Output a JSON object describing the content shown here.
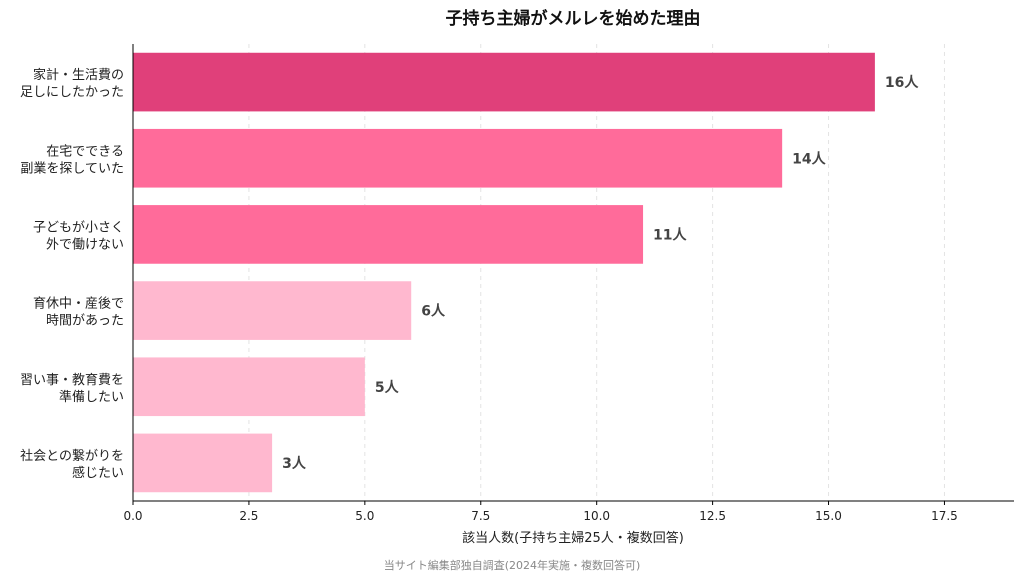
{
  "chart_data": {
    "type": "bar",
    "orientation": "horizontal",
    "title": "子持ち主婦がメルレを始めた理由",
    "xlabel": "該当人数(子持ち主婦25人・複数回答)",
    "ylabel": "",
    "categories": [
      [
        "家計・生活費の",
        "足しにしたかった"
      ],
      [
        "在宅でできる",
        "副業を探していた"
      ],
      [
        "子どもが小さく",
        "外で働けない"
      ],
      [
        "育休中・産後で",
        "時間があった"
      ],
      [
        "習い事・教育費を",
        "準備したい"
      ],
      [
        "社会との繋がりを",
        "感じたい"
      ]
    ],
    "values": [
      16,
      14,
      11,
      6,
      5,
      3
    ],
    "value_labels": [
      "16人",
      "14人",
      "11人",
      "6人",
      "5人",
      "3人"
    ],
    "bar_colors": [
      "#e0407a",
      "#ff6b9a",
      "#ff6b9a",
      "#ffb8cf",
      "#ffb8cf",
      "#ffb8cf"
    ],
    "xlim": [
      0,
      19
    ],
    "xticks": [
      0.0,
      2.5,
      5.0,
      7.5,
      10.0,
      12.5,
      15.0,
      17.5
    ],
    "xtick_labels": [
      "0.0",
      "2.5",
      "5.0",
      "7.5",
      "10.0",
      "12.5",
      "15.0",
      "17.5"
    ],
    "grid": "vertical-dashed",
    "source": "当サイト編集部独自調査(2024年実施・複数回答可)"
  }
}
